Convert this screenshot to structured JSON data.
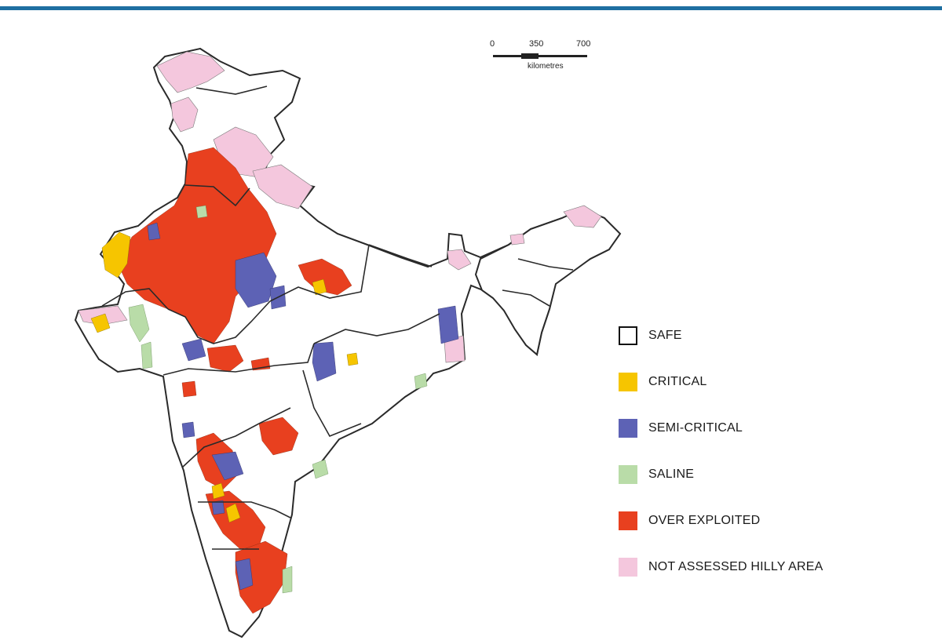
{
  "colors": {
    "accent_rule": "#1f6fa1",
    "safe": "#ffffff",
    "critical": "#f6c500",
    "semi_critical": "#5d62b5",
    "saline": "#b9dca8",
    "over_exploited": "#e8401f",
    "not_assessed": "#f4c7dd",
    "border": "#2a2a2a"
  },
  "scale_bar": {
    "ticks": [
      "0",
      "350",
      "700"
    ],
    "unit": "kilometres"
  },
  "legend": [
    {
      "label": "SAFE",
      "color": "#ffffff",
      "outlined": true
    },
    {
      "label": "CRITICAL",
      "color": "#f6c500",
      "outlined": false
    },
    {
      "label": "SEMI-CRITICAL",
      "color": "#5d62b5",
      "outlined": false
    },
    {
      "label": "SALINE",
      "color": "#b9dca8",
      "outlined": false
    },
    {
      "label": "OVER EXPLOITED",
      "color": "#e8401f",
      "outlined": false
    },
    {
      "label": "NOT ASSESSED HILLY AREA",
      "color": "#f4c7dd",
      "outlined": false
    }
  ]
}
